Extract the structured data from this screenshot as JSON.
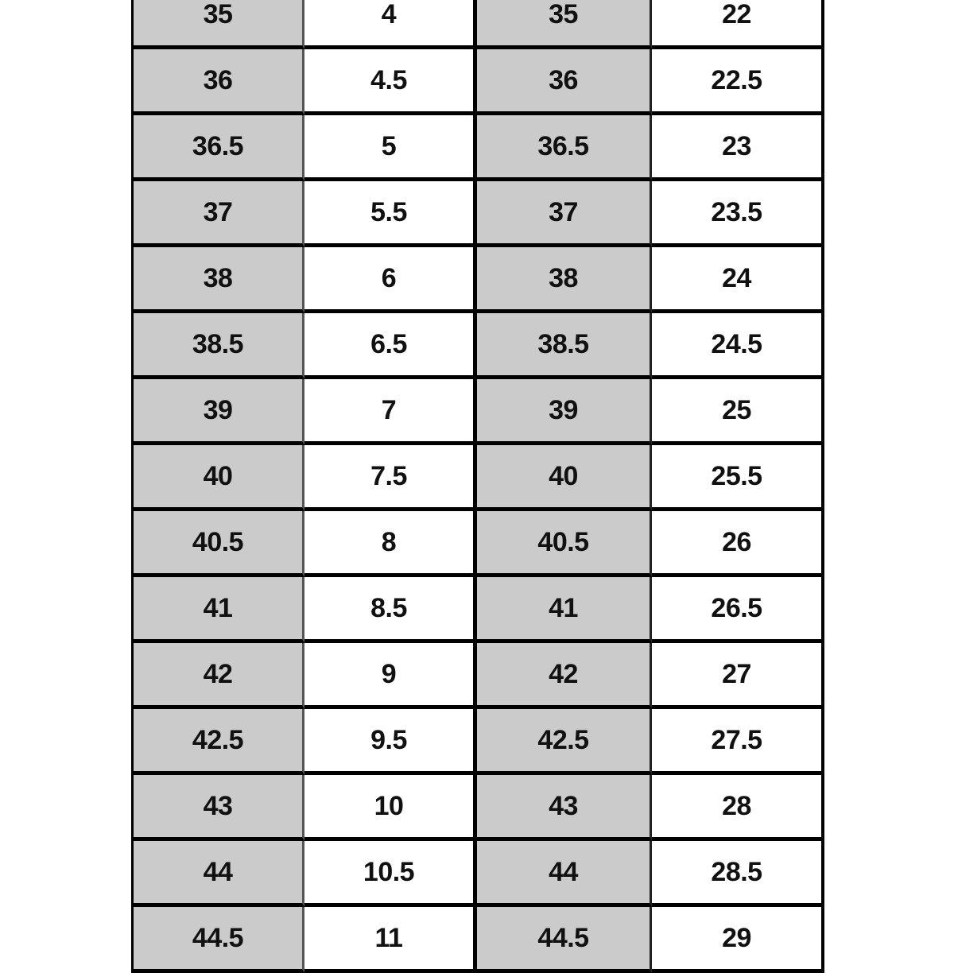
{
  "chart_data": {
    "type": "table",
    "title": "",
    "description": "Cropped size-conversion table with no visible headers; columns alternate shaded and plain. Left pair maps sizes 35 to 44.5 onto 4 to 11; right pair maps sizes 35 to 44.5 onto 22 to 29.",
    "rows": [
      [
        35,
        4,
        35,
        22
      ],
      [
        36,
        4.5,
        36,
        22.5
      ],
      [
        36.5,
        5,
        36.5,
        23
      ],
      [
        37,
        5.5,
        37,
        23.5
      ],
      [
        38,
        6,
        38,
        24
      ],
      [
        38.5,
        6.5,
        38.5,
        24.5
      ],
      [
        39,
        7,
        39,
        25
      ],
      [
        40,
        7.5,
        40,
        25.5
      ],
      [
        40.5,
        8,
        40.5,
        26
      ],
      [
        41,
        8.5,
        41,
        26.5
      ],
      [
        42,
        9,
        42,
        27
      ],
      [
        42.5,
        9.5,
        42.5,
        27.5
      ],
      [
        43,
        10,
        43,
        28
      ],
      [
        44,
        10.5,
        44,
        28.5
      ],
      [
        44.5,
        11,
        44.5,
        29
      ]
    ]
  },
  "colors": {
    "shaded_cell": "#cbcbcb",
    "border": "#000000",
    "text": "#111111"
  }
}
